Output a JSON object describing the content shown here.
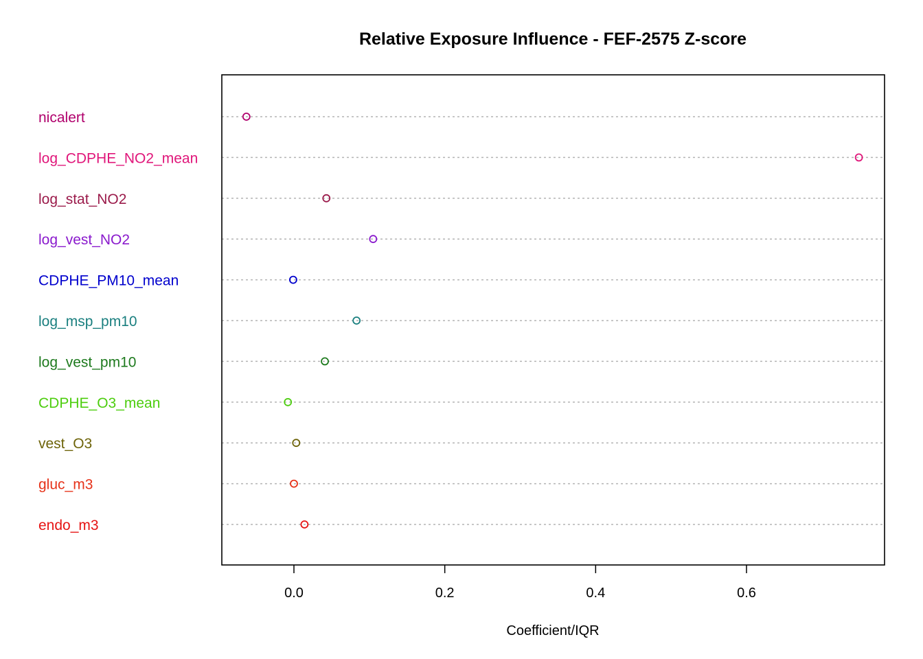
{
  "chart_data": {
    "type": "scatter",
    "title": "Relative Exposure Influence - FEF-2575 Z-score",
    "xlabel": "Coefficient/IQR",
    "ylabel": "",
    "xlim": [
      -0.095,
      0.78
    ],
    "xticks": [
      0.0,
      0.2,
      0.4,
      0.6
    ],
    "xtick_labels": [
      "0.0",
      "0.2",
      "0.4",
      "0.6"
    ],
    "grid": "horizontal dotted lines at each category",
    "legend": "none",
    "categories": [
      "nicalert",
      "log_CDPHE_NO2_mean",
      "log_stat_NO2",
      "log_vest_NO2",
      "CDPHE_PM10_mean",
      "log_msp_pm10",
      "log_vest_pm10",
      "CDPHE_O3_mean",
      "vest_O3",
      "gluc_m3",
      "endo_m3"
    ],
    "values": [
      -0.063,
      0.749,
      0.043,
      0.105,
      -0.001,
      0.083,
      0.041,
      -0.008,
      0.003,
      0.0,
      0.014
    ],
    "colors": [
      "#B0006C",
      "#E0167A",
      "#9B1B4B",
      "#8A1ACD",
      "#0000CD",
      "#1A7F7F",
      "#1E7A1E",
      "#4CCD0E",
      "#6E640A",
      "#E6331A",
      "#E61414"
    ]
  }
}
